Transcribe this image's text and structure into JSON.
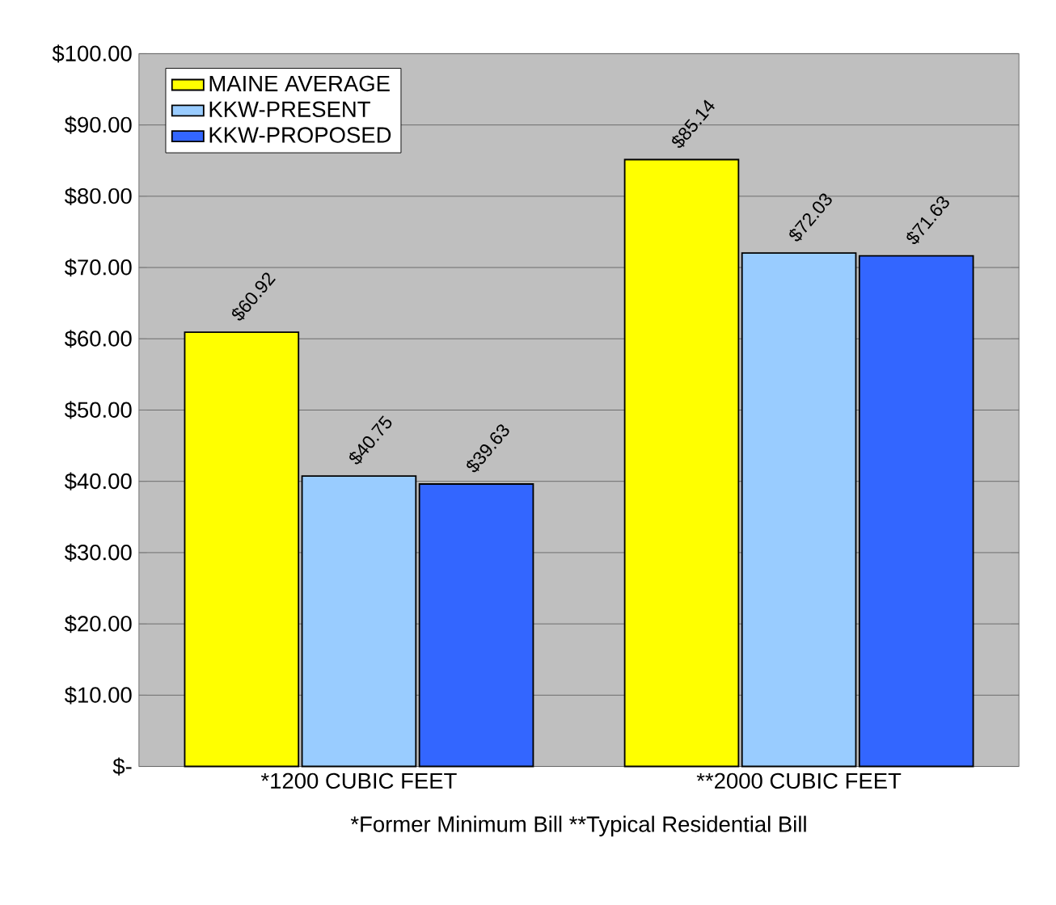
{
  "chart_data": {
    "type": "bar",
    "categories": [
      "*1200 CUBIC FEET",
      "**2000 CUBIC FEET"
    ],
    "series": [
      {
        "name": "MAINE AVERAGE",
        "color": "#ffff00",
        "values": [
          60.92,
          85.14
        ],
        "value_labels": [
          "$60.92",
          "$85.14"
        ]
      },
      {
        "name": "KKW-PRESENT",
        "color": "#99ccff",
        "values": [
          40.75,
          72.03
        ],
        "value_labels": [
          "$40.75",
          "$72.03"
        ]
      },
      {
        "name": "KKW-PROPOSED",
        "color": "#3366ff",
        "values": [
          39.63,
          71.63
        ],
        "value_labels": [
          "$39.63",
          "$71.63"
        ]
      }
    ],
    "ylim": [
      0,
      100
    ],
    "yticks": [
      {
        "value": 0,
        "label": "$-"
      },
      {
        "value": 10,
        "label": "$10.00"
      },
      {
        "value": 20,
        "label": "$20.00"
      },
      {
        "value": 30,
        "label": "$30.00"
      },
      {
        "value": 40,
        "label": "$40.00"
      },
      {
        "value": 50,
        "label": "$50.00"
      },
      {
        "value": 60,
        "label": "$60.00"
      },
      {
        "value": 70,
        "label": "$70.00"
      },
      {
        "value": 80,
        "label": "$80.00"
      },
      {
        "value": 90,
        "label": "$90.00"
      },
      {
        "value": 100,
        "label": "$100.00"
      }
    ],
    "grid": "y",
    "legend": "top left",
    "annotations": [
      "*Former Minimum Bill    **Typical Residential Bill"
    ]
  }
}
